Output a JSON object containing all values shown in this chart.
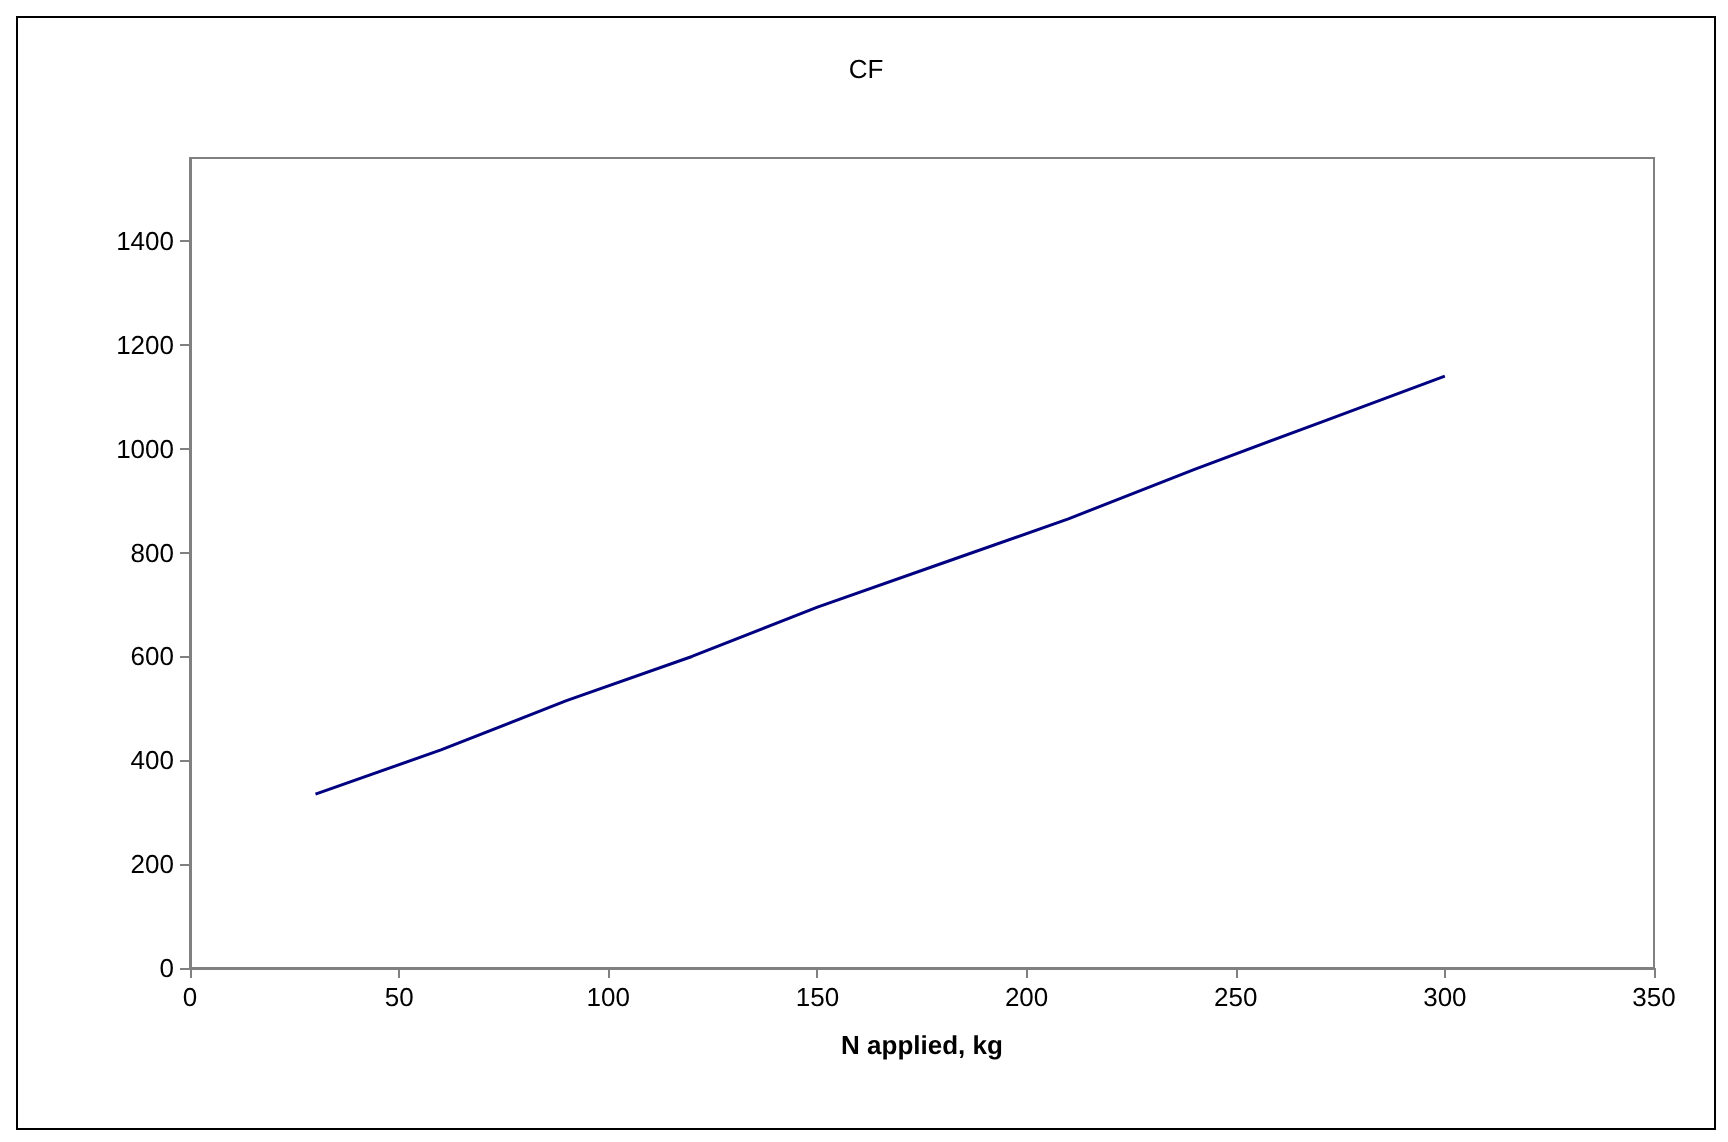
{
  "chart_data": {
    "type": "line",
    "title": "CF",
    "xlabel": "N applied, kg",
    "series": [
      {
        "color": "#000080",
        "x": [
          30,
          60,
          90,
          120,
          150,
          180,
          210,
          240,
          270,
          300
        ],
        "values": [
          335,
          420,
          515,
          600,
          695,
          780,
          865,
          960,
          1050,
          1140
        ]
      }
    ],
    "xlim": [
      0,
      350
    ],
    "xticks": [
      0,
      50,
      100,
      150,
      200,
      250,
      300,
      350
    ],
    "ylim": [
      0,
      1560
    ],
    "yticks": [
      0,
      200,
      400,
      600,
      800,
      1000,
      1200,
      1400
    ],
    "grid": false,
    "marker": "none",
    "line_style": "solid"
  }
}
